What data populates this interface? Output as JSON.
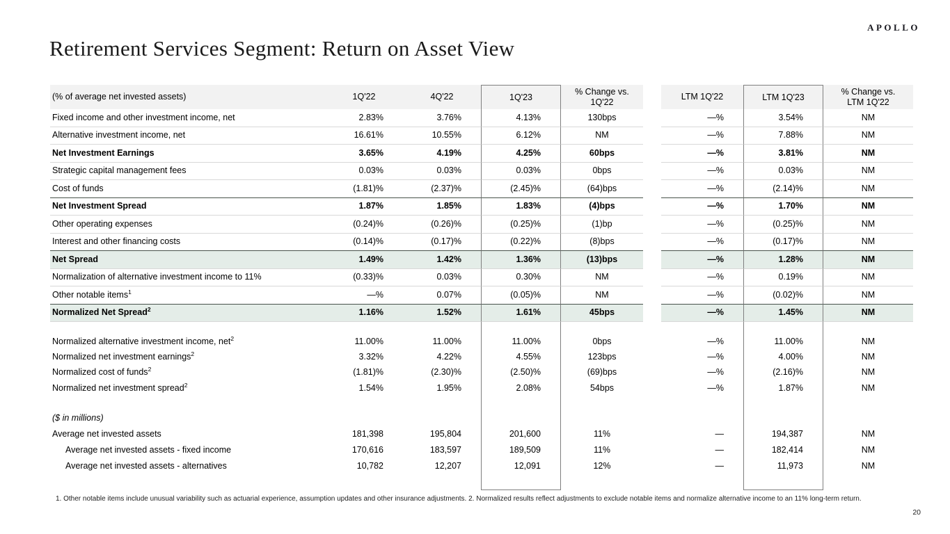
{
  "logo": {
    "text": "APOLLO"
  },
  "title": "Retirement Services Segment: Return on Asset View",
  "page": {
    "number": "20"
  },
  "footnote": "1. Other notable items include unusual variability such as actuarial experience, assumption updates and other insurance adjustments. 2. Normalized results reflect adjustments to exclude notable items and normalize alternative income to an 11% long-term return.",
  "colors": {
    "header_gray": "#f2f2f2",
    "row_green": "#e4ede8",
    "line_light": "#d8d8d8",
    "line_dark": "#47524a",
    "box_gray": "#7f7f7f"
  },
  "table": {
    "label_header": "(% of average net invested assets)",
    "column_headers": [
      "1Q'22",
      "4Q'22",
      "1Q'23",
      "% Change vs.\n1Q'22",
      "LTM 1Q'22",
      "LTM 1Q'23",
      "% Change vs.\nLTM 1Q'22"
    ],
    "rows": [
      {
        "type": "data",
        "section": "main",
        "label": "Fixed income and other investment income, net",
        "values": [
          "2.83%",
          "3.76%",
          "4.13%",
          "130bps",
          "—%",
          "3.54%",
          "NM"
        ]
      },
      {
        "type": "data",
        "section": "main",
        "border": "light",
        "label": "Alternative investment income, net",
        "values": [
          "16.61%",
          "10.55%",
          "6.12%",
          "NM",
          "—%",
          "7.88%",
          "NM"
        ]
      },
      {
        "type": "data",
        "section": "main",
        "border": "light",
        "bold": true,
        "label": "Net Investment Earnings",
        "values": [
          "3.65%",
          "4.19%",
          "4.25%",
          "60bps",
          "—%",
          "3.81%",
          "NM"
        ]
      },
      {
        "type": "data",
        "section": "main",
        "border": "light",
        "label": "Strategic capital management fees",
        "values": [
          "0.03%",
          "0.03%",
          "0.03%",
          "0bps",
          "—%",
          "0.03%",
          "NM"
        ]
      },
      {
        "type": "data",
        "section": "main",
        "border": "light",
        "label": "Cost of funds",
        "values": [
          "(1.81)%",
          "(2.37)%",
          "(2.45)%",
          "(64)bps",
          "—%",
          "(2.14)%",
          "NM"
        ]
      },
      {
        "type": "data",
        "section": "main",
        "border": "dark",
        "bold": true,
        "label": "Net Investment Spread",
        "values": [
          "1.87%",
          "1.85%",
          "1.83%",
          "(4)bps",
          "—%",
          "1.70%",
          "NM"
        ]
      },
      {
        "type": "data",
        "section": "main",
        "border": "light",
        "label": "Other operating expenses",
        "values": [
          "(0.24)%",
          "(0.26)%",
          "(0.25)%",
          "(1)bp",
          "—%",
          "(0.25)%",
          "NM"
        ]
      },
      {
        "type": "data",
        "section": "main",
        "border": "light",
        "label": "Interest and other financing costs",
        "values": [
          "(0.14)%",
          "(0.17)%",
          "(0.22)%",
          "(8)bps",
          "—%",
          "(0.17)%",
          "NM"
        ]
      },
      {
        "type": "data",
        "section": "main",
        "border": "dark",
        "bold": true,
        "green": true,
        "label": "Net Spread",
        "values": [
          "1.49%",
          "1.42%",
          "1.36%",
          "(13)bps",
          "—%",
          "1.28%",
          "NM"
        ]
      },
      {
        "type": "data",
        "section": "main",
        "border": "light",
        "label": "Normalization of alternative investment income to 11%",
        "values": [
          "(0.33)%",
          "0.03%",
          "0.30%",
          "NM",
          "—%",
          "0.19%",
          "NM"
        ]
      },
      {
        "type": "data",
        "section": "main",
        "border": "light",
        "label": "Other notable items",
        "sup": "1",
        "values": [
          "—%",
          "0.07%",
          "(0.05)%",
          "NM",
          "—%",
          "(0.02)%",
          "NM"
        ]
      },
      {
        "type": "data",
        "section": "main",
        "border": "dark",
        "bold": true,
        "green": true,
        "label": "Normalized Net Spread",
        "sup": "2",
        "values": [
          "1.16%",
          "1.52%",
          "1.61%",
          "45bps",
          "—%",
          "1.45%",
          "NM"
        ]
      },
      {
        "type": "spacer",
        "section": "gap1",
        "border": "light"
      },
      {
        "type": "data",
        "section": "norm",
        "label": "Normalized alternative investment income, net",
        "sup": "2",
        "values": [
          "11.00%",
          "11.00%",
          "11.00%",
          "0bps",
          "—%",
          "11.00%",
          "NM"
        ]
      },
      {
        "type": "data",
        "section": "norm",
        "label": "Normalized net investment earnings",
        "sup": "2",
        "values": [
          "3.32%",
          "4.22%",
          "4.55%",
          "123bps",
          "—%",
          "4.00%",
          "NM"
        ]
      },
      {
        "type": "data",
        "section": "norm",
        "label": "Normalized cost of funds",
        "sup": "2",
        "values": [
          "(1.81)%",
          "(2.30)%",
          "(2.50)%",
          "(69)bps",
          "—%",
          "(2.16)%",
          "NM"
        ]
      },
      {
        "type": "data",
        "section": "norm",
        "label": "Normalized net investment spread",
        "sup": "2",
        "values": [
          "1.54%",
          "1.95%",
          "2.08%",
          "54bps",
          "—%",
          "1.87%",
          "NM"
        ]
      },
      {
        "type": "spacer",
        "section": "gap2"
      },
      {
        "type": "data",
        "section": "usd",
        "italic": true,
        "label": "($ in millions)",
        "values": [
          "",
          "",
          "",
          "",
          "",
          "",
          ""
        ]
      },
      {
        "type": "data",
        "section": "usd",
        "label": "Average net invested assets",
        "values": [
          "181,398",
          "195,804",
          "201,600",
          "11%",
          "—",
          "194,387",
          "NM"
        ]
      },
      {
        "type": "data",
        "section": "usd",
        "indent": true,
        "label": "Average net invested assets - fixed income",
        "values": [
          "170,616",
          "183,597",
          "189,509",
          "11%",
          "—",
          "182,414",
          "NM"
        ]
      },
      {
        "type": "data",
        "section": "usd",
        "indent": true,
        "label": "Average net invested assets - alternatives",
        "values": [
          "10,782",
          "12,207",
          "12,091",
          "12%",
          "—",
          "11,973",
          "NM"
        ]
      },
      {
        "type": "spacer",
        "section": "gap3",
        "last": true
      }
    ]
  }
}
